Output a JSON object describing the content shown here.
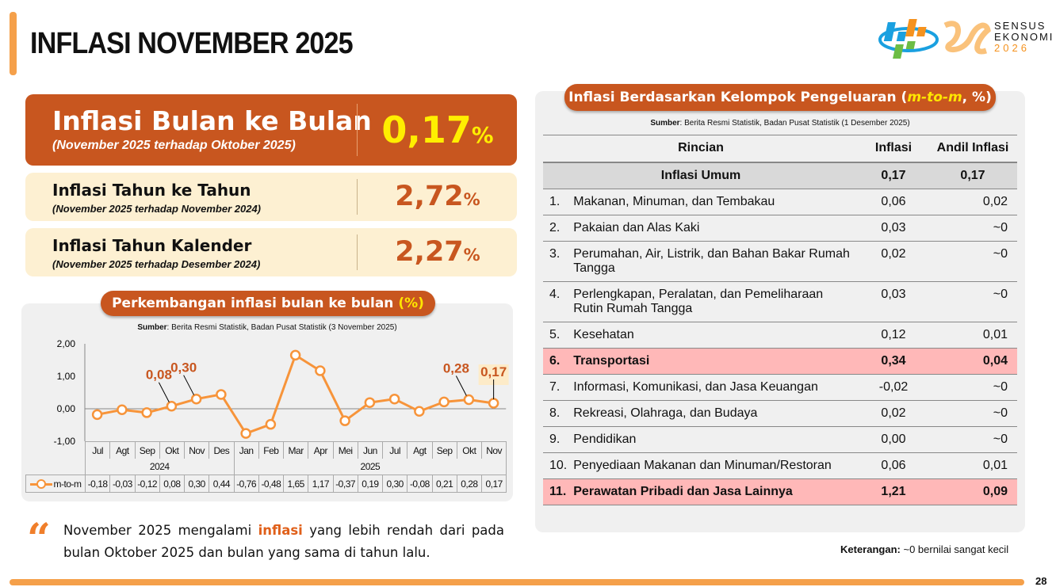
{
  "title": "INFLASI NOVEMBER 2025",
  "logo": {
    "line1": "SENSUS",
    "line2": "EKONOMI",
    "line3": "2026"
  },
  "cards": [
    {
      "label": "Inflasi Bulan ke Bulan",
      "sub": "(November 2025 terhadap Oktober 2025)",
      "value": "0,17",
      "unit": "%"
    },
    {
      "label": "Inflasi Tahun ke Tahun",
      "sub": "(November 2025 terhadap November 2024)",
      "value": "2,72",
      "unit": "%"
    },
    {
      "label": "Inflasi Tahun Kalender",
      "sub": "(November 2025 terhadap Desember 2024)",
      "value": "2,27",
      "unit": "%"
    }
  ],
  "chart_panel": {
    "title": "Perkembangan inflasi bulan ke bulan",
    "title_unit": "(%)",
    "source_label": "Sumber",
    "source": ": Berita Resmi Statistik, Badan Pusat Statistik (3 November 2025)"
  },
  "chart_data": {
    "type": "line",
    "categories": [
      "Jul",
      "Agt",
      "Sep",
      "Okt",
      "Nov",
      "Des",
      "Jan",
      "Feb",
      "Mar",
      "Apr",
      "Mei",
      "Jun",
      "Jul",
      "Agt",
      "Sep",
      "Okt",
      "Nov"
    ],
    "groups": [
      {
        "label": "2024",
        "count": 6
      },
      {
        "label": "2025",
        "count": 11
      }
    ],
    "series": [
      {
        "name": "m-to-m",
        "values": [
          -0.18,
          -0.03,
          -0.12,
          0.08,
          0.3,
          0.44,
          -0.76,
          -0.48,
          1.65,
          1.17,
          -0.37,
          0.19,
          0.3,
          -0.08,
          0.21,
          0.28,
          0.17
        ],
        "value_labels": [
          "-0,18",
          "-0,03",
          "-0,12",
          "0,08",
          "0,30",
          "0,44",
          "-0,76",
          "-0,48",
          "1,65",
          "1,17",
          "-0,37",
          "0,19",
          "0,30",
          "-0,08",
          "0,21",
          "0,28",
          "0,17"
        ]
      }
    ],
    "callouts": [
      {
        "index": 3,
        "label": "0,08"
      },
      {
        "index": 4,
        "label": "0,30"
      },
      {
        "index": 15,
        "label": "0,28"
      },
      {
        "index": 16,
        "label": "0,17"
      }
    ],
    "yticks": [
      "2,00",
      "1,00",
      "0,00",
      "-1,00"
    ],
    "ylim": [
      -1,
      2
    ],
    "color": "#f7943a"
  },
  "table_panel": {
    "title_a": "Inflasi Berdasarkan Kelompok Pengeluaran (",
    "title_em": "m-to-m",
    ")": "",
    "title_b": ", %)",
    "source_label": "Sumber",
    "source": ": Berita Resmi Statistik, Badan Pusat Statistik (1 Desember 2025)"
  },
  "table": {
    "headers": [
      "Rincian",
      "Inflasi",
      "Andil Inflasi"
    ],
    "general": {
      "name": "Inflasi Umum",
      "inflasi": "0,17",
      "andil": "0,17"
    },
    "rows": [
      {
        "no": "1.",
        "name": "Makanan, Minuman, dan Tembakau",
        "inflasi": "0,06",
        "andil": "0,02"
      },
      {
        "no": "2.",
        "name": "Pakaian dan Alas Kaki",
        "inflasi": "0,03",
        "andil": "~0"
      },
      {
        "no": "3.",
        "name": "Perumahan, Air, Listrik, dan Bahan Bakar Rumah Tangga",
        "inflasi": "0,02",
        "andil": "~0"
      },
      {
        "no": "4.",
        "name": "Perlengkapan, Peralatan, dan Pemeliharaan Rutin Rumah Tangga",
        "inflasi": "0,03",
        "andil": "~0"
      },
      {
        "no": "5.",
        "name": "Kesehatan",
        "inflasi": "0,12",
        "andil": "0,01"
      },
      {
        "no": "6.",
        "name": "Transportasi",
        "inflasi": "0,34",
        "andil": "0,04",
        "highlight": true
      },
      {
        "no": "7.",
        "name": "Informasi, Komunikasi, dan Jasa Keuangan",
        "inflasi": "-0,02",
        "andil": "~0"
      },
      {
        "no": "8.",
        "name": "Rekreasi, Olahraga, dan Budaya",
        "inflasi": "0,02",
        "andil": "~0"
      },
      {
        "no": "9.",
        "name": "Pendidikan",
        "inflasi": "0,00",
        "andil": "~0"
      },
      {
        "no": "10.",
        "name": "Penyediaan Makanan dan Minuman/Restoran",
        "inflasi": "0,06",
        "andil": "0,01"
      },
      {
        "no": "11.",
        "name": "Perawatan Pribadi dan Jasa Lainnya",
        "inflasi": "1,21",
        "andil": "0,09",
        "highlight": true
      }
    ]
  },
  "note": {
    "label": "Keterangan:",
    "text": " ~0 bernilai sangat kecil"
  },
  "summary": {
    "a": "November 2025 mengalami ",
    "b": "inflasi",
    "c": " yang lebih rendah dari pada bulan Oktober 2025 dan bulan yang sama di tahun lalu."
  },
  "page_number": "28"
}
